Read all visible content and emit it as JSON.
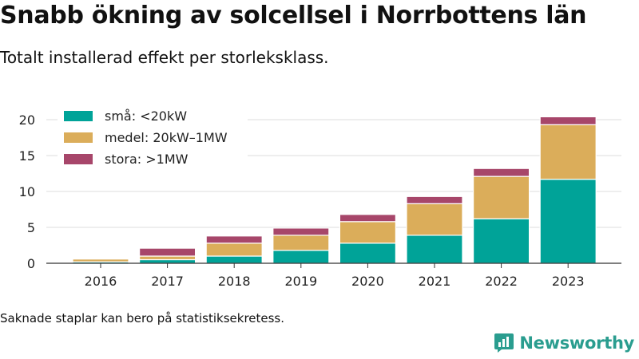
{
  "header": {
    "title": "Snabb ökning av solcellsel i Norrbottens län",
    "subtitle": "Totalt installerad effekt per storleksklass."
  },
  "footnote": "Saknade staplar kan bero på statistiksekretess.",
  "brand": {
    "name": "Newsworthy",
    "icon": "newsworthy-logo-icon"
  },
  "colors": {
    "small": "#00a398",
    "medium": "#dbad5a",
    "large": "#a7466a",
    "grid": "#dddddd",
    "brand": "#2a9d8f"
  },
  "chart_data": {
    "type": "bar",
    "stacked": true,
    "title": "Snabb ökning av solcellsel i Norrbottens län",
    "subtitle": "Totalt installerad effekt per storleksklass.",
    "categories": [
      "2016",
      "2017",
      "2018",
      "2019",
      "2020",
      "2021",
      "2022",
      "2023"
    ],
    "series": [
      {
        "name": "små: <20kW",
        "color": "#00a398",
        "values": [
          0.2,
          0.5,
          1.0,
          1.8,
          2.8,
          3.9,
          6.2,
          11.7
        ]
      },
      {
        "name": "medel: 20kW–1MW",
        "color": "#dbad5a",
        "values": [
          0.4,
          0.5,
          1.8,
          2.1,
          3.0,
          4.4,
          5.9,
          7.6
        ]
      },
      {
        "name": "stora: >1MW",
        "color": "#a7466a",
        "values": [
          0.1,
          1.1,
          1.0,
          1.0,
          1.0,
          1.0,
          1.1,
          1.1
        ]
      }
    ],
    "yticks": [
      0,
      5,
      10,
      15,
      20
    ],
    "ylim": [
      0,
      21.5
    ],
    "xlabel": "",
    "ylabel": "",
    "grid": true,
    "legend_position": "top-left"
  }
}
